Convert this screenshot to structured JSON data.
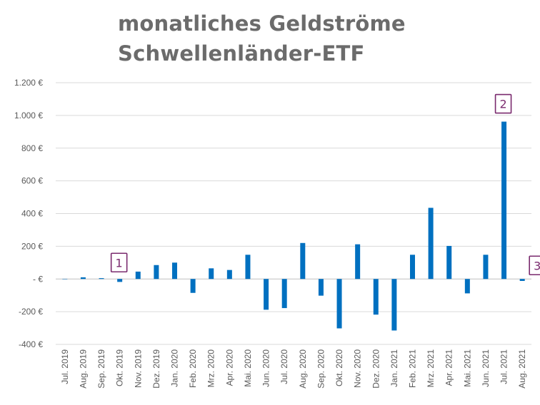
{
  "chart_data": {
    "type": "bar",
    "title_lines": [
      "monatliches Geldströme",
      "Schwellenländer-ETF"
    ],
    "xlabel": "",
    "ylabel": "",
    "ylim": [
      -400,
      1200
    ],
    "yticks": [
      1200,
      1000,
      800,
      600,
      400,
      200,
      0,
      -200,
      -400
    ],
    "ytick_labels": [
      "1.200 €",
      "1.000 €",
      "800 €",
      "600 €",
      "400 €",
      "200 €",
      "- €",
      "-200 €",
      "-400 €"
    ],
    "grid": true,
    "bar_color": "#0070c0",
    "categories": [
      "Jul. 2019",
      "Aug. 2019",
      "Sep. 2019",
      "Okt. 2019",
      "Nov. 2019",
      "Dez. 2019",
      "Jan. 2020",
      "Feb. 2020",
      "Mrz. 2020",
      "Apr. 2020",
      "Mai. 2020",
      "Jun. 2020",
      "Jul. 2020",
      "Aug. 2020",
      "Sep. 2020",
      "Okt. 2020",
      "Nov. 2020",
      "Dez. 2020",
      "Jan. 2021",
      "Feb. 2021",
      "Mrz. 2021",
      "Apr. 2021",
      "Mai. 2021",
      "Jun. 2021",
      "Jul. 2021",
      "Aug. 2021"
    ],
    "values": [
      0,
      10,
      5,
      -18,
      45,
      85,
      100,
      -85,
      65,
      55,
      148,
      -188,
      -178,
      220,
      -102,
      -302,
      212,
      -218,
      -315,
      148,
      435,
      202,
      -88,
      148,
      962,
      -12
    ],
    "annotations": [
      {
        "label": "1",
        "category_index": 3
      },
      {
        "label": "2",
        "category_index": 24
      },
      {
        "label": "3",
        "category_index": 25
      }
    ],
    "annotation_color": "#7a2a6e"
  }
}
